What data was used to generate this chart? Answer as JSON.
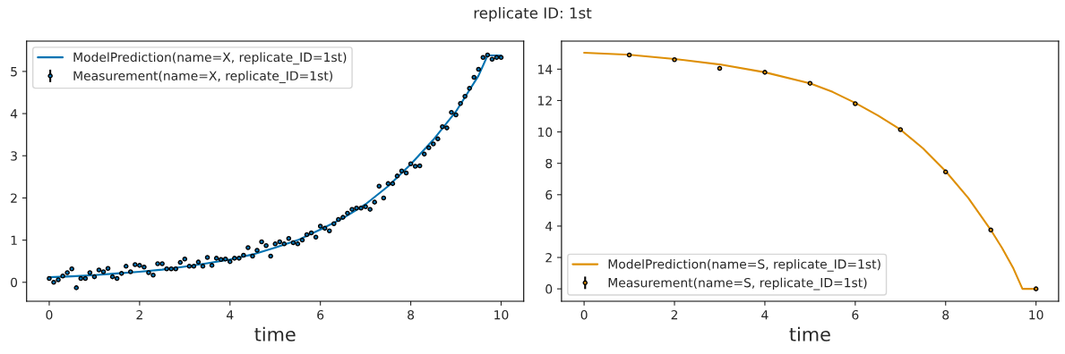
{
  "chart_data": [
    {
      "type": "line",
      "title": "replicate ID: 1st",
      "xlabel": "time",
      "xlim": [
        -0.5,
        10.5
      ],
      "xticks": [
        0,
        2,
        4,
        6,
        8,
        10
      ],
      "ylim": [
        -0.45,
        5.72
      ],
      "yticks": [
        0,
        1,
        2,
        3,
        4,
        5
      ],
      "grid": false,
      "legend": "top left",
      "series": [
        {
          "name": "ModelPrediction(name=X, replicate_ID=1st)",
          "color": "#0173b2",
          "marker": "none",
          "line_style": "solid",
          "x": [
            0,
            0.5,
            1,
            1.5,
            2,
            2.5,
            3,
            3.5,
            4,
            4.5,
            5,
            5.5,
            6,
            6.5,
            7,
            7.5,
            8,
            8.5,
            9,
            9.5,
            9.7,
            10
          ],
          "values": [
            0.12,
            0.14,
            0.17,
            0.21,
            0.25,
            0.3,
            0.37,
            0.45,
            0.54,
            0.66,
            0.82,
            1.0,
            1.25,
            1.52,
            1.85,
            2.28,
            2.8,
            3.38,
            4.05,
            4.9,
            5.38,
            5.38
          ]
        },
        {
          "name": "Measurement(name=X, replicate_ID=1st)",
          "type": "scatter",
          "color": "#0173b2",
          "marker": "circle",
          "x": [
            0,
            0.1,
            0.2,
            0.3,
            0.4,
            0.5,
            0.6,
            0.7,
            0.8,
            0.9,
            1.0,
            1.1,
            1.2,
            1.3,
            1.4,
            1.5,
            1.6,
            1.7,
            1.8,
            1.9,
            2.0,
            2.1,
            2.2,
            2.3,
            2.4,
            2.5,
            2.6,
            2.7,
            2.8,
            2.9,
            3.0,
            3.1,
            3.2,
            3.3,
            3.4,
            3.5,
            3.6,
            3.7,
            3.8,
            3.9,
            4.0,
            4.1,
            4.2,
            4.3,
            4.4,
            4.5,
            4.6,
            4.7,
            4.8,
            4.9,
            5.0,
            5.1,
            5.2,
            5.3,
            5.4,
            5.5,
            5.6,
            5.7,
            5.8,
            5.9,
            6.0,
            6.1,
            6.2,
            6.3,
            6.4,
            6.5,
            6.6,
            6.7,
            6.8,
            6.9,
            7.0,
            7.1,
            7.2,
            7.3,
            7.4,
            7.5,
            7.6,
            7.7,
            7.8,
            7.9,
            8.0,
            8.1,
            8.2,
            8.3,
            8.4,
            8.5,
            8.6,
            8.7,
            8.8,
            8.9,
            9.0,
            9.1,
            9.2,
            9.3,
            9.4,
            9.5,
            9.6,
            9.7,
            9.8,
            9.9,
            10.0
          ],
          "values": [
            0.09,
            0.0,
            0.06,
            0.15,
            0.23,
            0.32,
            -0.13,
            0.09,
            0.09,
            0.23,
            0.13,
            0.29,
            0.25,
            0.33,
            0.13,
            0.09,
            0.21,
            0.38,
            0.25,
            0.42,
            0.4,
            0.36,
            0.23,
            0.17,
            0.44,
            0.44,
            0.32,
            0.32,
            0.32,
            0.47,
            0.55,
            0.38,
            0.38,
            0.48,
            0.38,
            0.59,
            0.4,
            0.57,
            0.54,
            0.55,
            0.49,
            0.57,
            0.57,
            0.64,
            0.82,
            0.62,
            0.76,
            0.96,
            0.87,
            0.62,
            0.91,
            0.96,
            0.91,
            1.04,
            0.94,
            0.91,
            1.0,
            1.13,
            1.17,
            1.07,
            1.33,
            1.28,
            1.22,
            1.39,
            1.49,
            1.54,
            1.64,
            1.73,
            1.76,
            1.76,
            1.79,
            1.73,
            1.9,
            2.28,
            2.0,
            2.34,
            2.34,
            2.52,
            2.64,
            2.59,
            2.81,
            2.75,
            2.76,
            3.04,
            3.19,
            3.28,
            3.4,
            3.69,
            3.66,
            4.03,
            3.97,
            4.24,
            4.41,
            4.6,
            4.86,
            5.05,
            5.33,
            5.39,
            5.29,
            5.33,
            5.33
          ]
        }
      ]
    },
    {
      "type": "line",
      "xlabel": "time",
      "xlim": [
        -0.5,
        10.5
      ],
      "xticks": [
        0,
        2,
        4,
        6,
        8,
        10
      ],
      "ylim": [
        -0.79,
        15.79
      ],
      "yticks": [
        0,
        2,
        4,
        6,
        8,
        10,
        12,
        14
      ],
      "grid": false,
      "legend": "bottom left",
      "series": [
        {
          "name": "ModelPrediction(name=S, replicate_ID=1st)",
          "color": "#de8f05",
          "marker": "none",
          "line_style": "solid",
          "x": [
            0,
            1,
            2,
            3,
            4,
            5,
            5.5,
            6,
            6.5,
            7,
            7.5,
            8,
            8.5,
            9,
            9.25,
            9.5,
            9.7,
            10
          ],
          "values": [
            15.05,
            14.92,
            14.65,
            14.3,
            13.8,
            13.1,
            12.55,
            11.85,
            11.05,
            10.15,
            8.95,
            7.5,
            5.8,
            3.75,
            2.6,
            1.3,
            0,
            0
          ]
        },
        {
          "name": "Measurement(name=S, replicate_ID=1st)",
          "type": "scatter",
          "color": "#de8f05",
          "marker": "circle",
          "x": [
            1,
            2,
            3,
            4,
            5,
            6,
            7,
            8,
            9,
            10
          ],
          "values": [
            14.9,
            14.6,
            14.05,
            13.8,
            13.1,
            11.8,
            10.15,
            7.45,
            3.75,
            0
          ]
        }
      ]
    }
  ]
}
